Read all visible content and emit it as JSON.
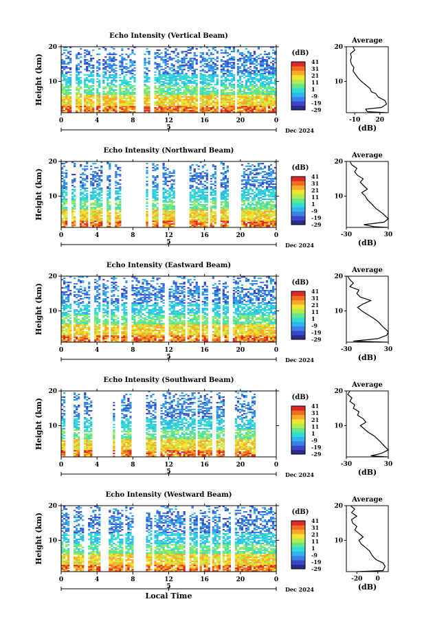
{
  "chart_data": {
    "type": "heatmap",
    "x_axis": {
      "label": "Local Time",
      "ticks": [
        "0",
        "4",
        "8",
        "12",
        "16",
        "20",
        "0"
      ],
      "xlim": [
        0,
        24
      ],
      "day_marker": "5",
      "date_label": "Dec 2024"
    },
    "y_axis": {
      "label": "Height (km)",
      "ticks": [
        "10",
        "20"
      ],
      "ylim": [
        1,
        20
      ]
    },
    "colorbar": {
      "label": "(dB)",
      "ticks": [
        "41",
        "31",
        "21",
        "11",
        "1",
        "-9",
        "-19",
        "-29"
      ],
      "range": [
        -29,
        41
      ],
      "colors": [
        "#2b2b8c",
        "#3c46c8",
        "#3c82e6",
        "#32b4f0",
        "#32dcd2",
        "#64e68c",
        "#b4eb50",
        "#f0e632",
        "#faaa28",
        "#f06e1e",
        "#dc2828"
      ]
    },
    "panels": [
      {
        "id": "vertical",
        "title": "Echo Intensity (Vertical Beam)",
        "profile_title": "Average",
        "profile_xlabel": "(dB)",
        "profile_ticks": [
          "-10",
          "20"
        ],
        "profile_xlim": [
          -20,
          30
        ],
        "data_gaps_hours": [
          [
            1.2,
            1.5
          ],
          [
            2.3,
            2.5
          ],
          [
            3.7,
            3.9
          ],
          [
            4.3,
            4.5
          ],
          [
            6.3,
            6.5
          ],
          [
            8.2,
            9.3
          ],
          [
            10.0,
            10.3
          ],
          [
            15.2,
            15.5
          ],
          [
            17.6,
            17.8
          ],
          [
            19.4,
            19.6
          ],
          [
            21.6,
            21.8
          ]
        ],
        "profile": [
          [
            28,
            1
          ],
          [
            5,
            1.3
          ],
          [
            3,
            2
          ],
          [
            22,
            2.5
          ],
          [
            28,
            3.5
          ],
          [
            26,
            4.5
          ],
          [
            18,
            5.5
          ],
          [
            15,
            6.5
          ],
          [
            10,
            7
          ],
          [
            8,
            8
          ],
          [
            3,
            9
          ],
          [
            -2,
            10
          ],
          [
            -6,
            11
          ],
          [
            -9,
            12
          ],
          [
            -12,
            13
          ],
          [
            -11,
            14
          ],
          [
            -14,
            15
          ],
          [
            -15,
            16
          ],
          [
            -14,
            17
          ],
          [
            -15,
            18
          ],
          [
            -10,
            19
          ],
          [
            -12,
            20
          ]
        ]
      },
      {
        "id": "northward",
        "title": "Echo Intensity (Northward Beam)",
        "profile_title": "Average",
        "profile_xlabel": "(dB)",
        "profile_ticks": [
          "-30",
          "30"
        ],
        "profile_xlim": [
          -30,
          30
        ],
        "data_gaps_hours": [
          [
            0.6,
            1.1
          ],
          [
            1.6,
            2.0
          ],
          [
            3.1,
            3.3
          ],
          [
            4.7,
            5.1
          ],
          [
            5.5,
            6.1
          ],
          [
            6.8,
            9.4
          ],
          [
            9.8,
            10.1
          ],
          [
            10.9,
            11.3
          ],
          [
            12.6,
            14.2
          ],
          [
            16.4,
            16.7
          ],
          [
            17.4,
            17.7
          ],
          [
            18.6,
            20.1
          ]
        ],
        "profile": [
          [
            28,
            1
          ],
          [
            10,
            1.2
          ],
          [
            -5,
            1.8
          ],
          [
            24,
            2.5
          ],
          [
            30,
            3.5
          ],
          [
            22,
            5
          ],
          [
            12,
            6.5
          ],
          [
            5,
            8
          ],
          [
            0,
            9
          ],
          [
            -3,
            10
          ],
          [
            -8,
            11
          ],
          [
            0,
            12
          ],
          [
            -5,
            13
          ],
          [
            -10,
            14
          ],
          [
            -6,
            15
          ],
          [
            -14,
            16
          ],
          [
            -18,
            17
          ],
          [
            -15,
            18
          ],
          [
            -22,
            19
          ],
          [
            -25,
            20
          ]
        ]
      },
      {
        "id": "eastward",
        "title": "Echo Intensity (Eastward Beam)",
        "profile_title": "Average",
        "profile_xlabel": "(dB)",
        "profile_ticks": [
          "-30",
          "30"
        ],
        "profile_xlim": [
          -30,
          30
        ],
        "data_gaps_hours": [
          [
            1.1,
            1.3
          ],
          [
            3.3,
            3.6
          ],
          [
            4.3,
            4.6
          ],
          [
            5.2,
            5.5
          ],
          [
            6.5,
            6.8
          ],
          [
            7.5,
            7.8
          ],
          [
            8.9,
            9.1
          ],
          [
            11.6,
            11.9
          ],
          [
            13.9,
            14.1
          ],
          [
            15.4,
            15.6
          ],
          [
            16.5,
            16.8
          ],
          [
            17.8,
            18.1
          ],
          [
            18.6,
            19.2
          ]
        ],
        "profile": [
          [
            28,
            1
          ],
          [
            -20,
            1.3
          ],
          [
            15,
            2
          ],
          [
            28,
            3
          ],
          [
            30,
            4
          ],
          [
            22,
            5.5
          ],
          [
            15,
            7
          ],
          [
            8,
            8
          ],
          [
            0,
            9
          ],
          [
            -8,
            10
          ],
          [
            -14,
            11
          ],
          [
            -6,
            12
          ],
          [
            5,
            13
          ],
          [
            -10,
            14
          ],
          [
            -15,
            15
          ],
          [
            -12,
            16
          ],
          [
            -25,
            17
          ],
          [
            -20,
            18
          ],
          [
            -25,
            19
          ],
          [
            -28,
            20
          ]
        ]
      },
      {
        "id": "southward",
        "title": "Echo Intensity (Southward Beam)",
        "profile_title": "Average",
        "profile_xlabel": "(dB)",
        "profile_ticks": [
          "-30",
          "30"
        ],
        "profile_xlim": [
          -30,
          30
        ],
        "data_gaps_hours": [
          [
            0.4,
            1.4
          ],
          [
            2.1,
            2.6
          ],
          [
            3.4,
            5.7
          ],
          [
            6.1,
            6.6
          ],
          [
            7.8,
            9.4
          ],
          [
            10.6,
            11.0
          ],
          [
            14.9,
            15.2
          ],
          [
            16.9,
            17.3
          ],
          [
            18.3,
            19.4
          ],
          [
            21.6,
            24.0
          ]
        ],
        "profile": [
          [
            28,
            1
          ],
          [
            5,
            1.3
          ],
          [
            20,
            2
          ],
          [
            30,
            3
          ],
          [
            25,
            4
          ],
          [
            18,
            5.5
          ],
          [
            10,
            7
          ],
          [
            2,
            8
          ],
          [
            -4,
            9
          ],
          [
            -10,
            10
          ],
          [
            -2,
            11
          ],
          [
            -6,
            12
          ],
          [
            -14,
            13
          ],
          [
            -12,
            14
          ],
          [
            -20,
            15
          ],
          [
            -18,
            16
          ],
          [
            -25,
            17
          ],
          [
            -22,
            18
          ],
          [
            -28,
            19
          ],
          [
            -25,
            20
          ]
        ]
      },
      {
        "id": "westward",
        "title": "Echo Intensity (Westward Beam)",
        "profile_title": "Average",
        "profile_xlabel": "(dB)",
        "profile_ticks": [
          "-20",
          "0"
        ],
        "profile_xlim": [
          -30,
          10
        ],
        "data_gaps_hours": [
          [
            1.0,
            1.3
          ],
          [
            2.6,
            3.0
          ],
          [
            4.3,
            5.4
          ],
          [
            6.9,
            7.1
          ],
          [
            8.1,
            9.5
          ],
          [
            10.1,
            10.3
          ],
          [
            13.9,
            14.2
          ],
          [
            15.2,
            15.5
          ],
          [
            16.6,
            16.9
          ],
          [
            17.7,
            18.0
          ],
          [
            19.0,
            19.4
          ]
        ],
        "profile": [
          [
            -20,
            1
          ],
          [
            5,
            1.3
          ],
          [
            7,
            2.5
          ],
          [
            5,
            3.5
          ],
          [
            -2,
            4.5
          ],
          [
            -5,
            5.5
          ],
          [
            -8,
            7
          ],
          [
            -12,
            8
          ],
          [
            -16,
            9
          ],
          [
            -18,
            10
          ],
          [
            -14,
            11
          ],
          [
            -18,
            12
          ],
          [
            -22,
            13
          ],
          [
            -20,
            14
          ],
          [
            -24,
            15
          ],
          [
            -25,
            16
          ],
          [
            -20,
            17
          ],
          [
            -25,
            18
          ],
          [
            -22,
            19
          ],
          [
            -26,
            20
          ]
        ]
      }
    ]
  }
}
